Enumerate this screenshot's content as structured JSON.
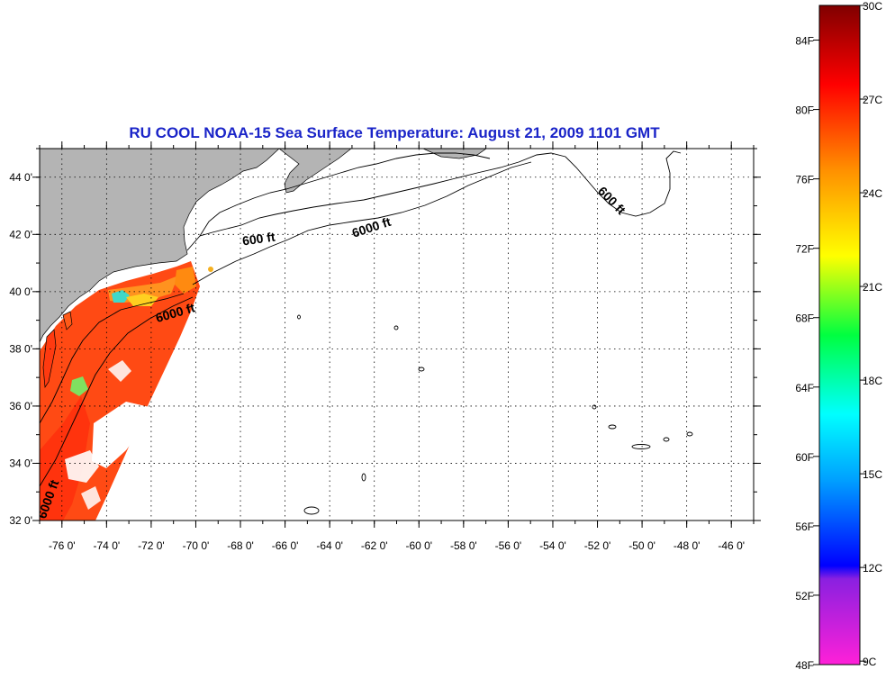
{
  "title": "RU COOL  NOAA-15  Sea Surface Temperature:  August 21, 2009 1101 GMT",
  "map": {
    "lon_range": [
      -77,
      -45
    ],
    "lat_range": [
      32,
      45
    ],
    "lon_ticks": [
      "-76 0'",
      "-74 0'",
      "-72 0'",
      "-70 0'",
      "-68 0'",
      "-66 0'",
      "-64 0'",
      "-62 0'",
      "-60 0'",
      "-58 0'",
      "-56 0'",
      "-54 0'",
      "-52 0'",
      "-50 0'",
      "-48 0'",
      "-46 0'"
    ],
    "lat_ticks": [
      "44 0'",
      "42 0'",
      "40 0'",
      "38 0'",
      "36 0'",
      "34 0'",
      "32 0'"
    ],
    "grid": "dotted",
    "land_color": "#b4b4b4",
    "no_data_color": "#ffffff",
    "contour_labels": [
      "600 ft",
      "6000 ft",
      "6000 ft",
      "600 ft",
      "6000 ft"
    ]
  },
  "colorbar": {
    "fahrenheit_labels": [
      "84F",
      "80F",
      "76F",
      "72F",
      "68F",
      "64F",
      "60F",
      "56F",
      "52F",
      "48F"
    ],
    "celsius_labels": [
      "30C",
      "27C",
      "24C",
      "21C",
      "18C",
      "15C",
      "12C",
      "9C"
    ],
    "colors": [
      "#8b0000",
      "#ff0000",
      "#ff8c00",
      "#ffff00",
      "#00ff00",
      "#00ffff",
      "#0080ff",
      "#0000ff",
      "#8000ff",
      "#ff00ff"
    ]
  }
}
